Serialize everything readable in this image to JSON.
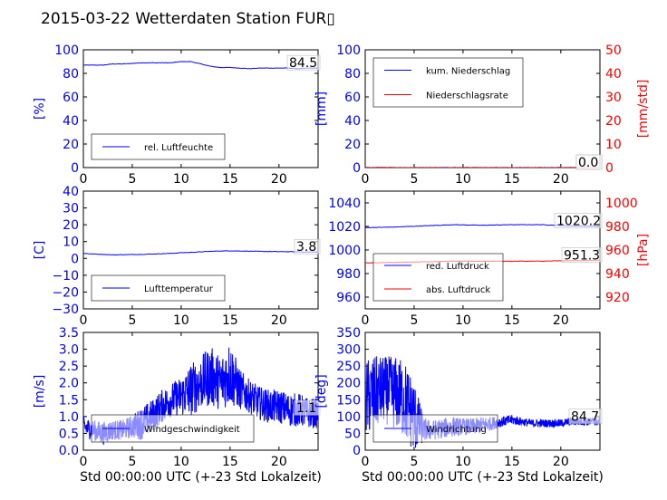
{
  "title": "2015-03-22 Wetterdaten Station FUR▯",
  "colors": {
    "blue": "#0000ff",
    "red": "#ff0000",
    "black": "#000000"
  },
  "chart_data": [
    {
      "id": "humidity",
      "type": "line",
      "xlim": [
        0,
        24
      ],
      "ylim": [
        0,
        100
      ],
      "xticks": [
        "0",
        "5",
        "10",
        "15",
        "20"
      ],
      "yticks": [
        "0",
        "20",
        "40",
        "60",
        "80",
        "100"
      ],
      "ylabel": "[%]",
      "legend": [
        "rel. Luftfeuchte"
      ],
      "annotation": "84.5",
      "series": [
        {
          "name": "rel. Luftfeuchte",
          "color": "#0000ff",
          "x": [
            0,
            1,
            2,
            3,
            4,
            5,
            6,
            7,
            8,
            9,
            10,
            11,
            12,
            13,
            14,
            15,
            16,
            17,
            18,
            19,
            20,
            21,
            22,
            23,
            24
          ],
          "y": [
            87,
            87,
            87,
            88,
            88,
            88.5,
            89,
            89,
            89,
            89,
            90,
            90,
            88,
            86,
            85,
            85,
            84.5,
            84,
            84.5,
            84.5,
            84.5,
            84.5,
            84,
            84.5,
            84.5
          ]
        }
      ]
    },
    {
      "id": "precip",
      "type": "line",
      "xlim": [
        0,
        24
      ],
      "ylim": [
        0,
        100
      ],
      "ylim2": [
        0,
        50
      ],
      "xticks": [
        "0",
        "5",
        "10",
        "15",
        "20"
      ],
      "yticks": [
        "0",
        "20",
        "40",
        "60",
        "80",
        "100"
      ],
      "yticks2": [
        "0",
        "10",
        "20",
        "30",
        "40",
        "50"
      ],
      "ylabel": "[mm]",
      "ylabel2": "[mm/std]",
      "legend": [
        "kum. Niederschlag",
        "Niederschlagsrate"
      ],
      "annotation": "0.0",
      "annotation2": "0.0",
      "series": [
        {
          "name": "kum. Niederschlag",
          "color": "#0000ff",
          "x": [
            0,
            24
          ],
          "y": [
            0,
            0
          ]
        },
        {
          "name": "Niederschlagsrate",
          "color": "#ff0000",
          "x": [
            0,
            2,
            3,
            24
          ],
          "y": [
            0,
            0.3,
            0,
            0
          ]
        }
      ]
    },
    {
      "id": "temperature",
      "type": "line",
      "xlim": [
        0,
        24
      ],
      "ylim": [
        -30,
        40
      ],
      "xticks": [
        "0",
        "5",
        "10",
        "15",
        "20"
      ],
      "yticks": [
        "−30",
        "−20",
        "−10",
        "0",
        "10",
        "20",
        "30",
        "40"
      ],
      "ylabel": "[C]",
      "legend": [
        "Lufttemperatur"
      ],
      "annotation": "3.8",
      "series": [
        {
          "name": "Lufttemperatur",
          "color": "#0000ff",
          "x": [
            0,
            1,
            2,
            3,
            4,
            5,
            6,
            7,
            8,
            9,
            10,
            11,
            12,
            13,
            14,
            15,
            16,
            17,
            18,
            19,
            20,
            21,
            22,
            23,
            24
          ],
          "y": [
            3,
            2.6,
            2.4,
            2.1,
            2.2,
            2.3,
            2.4,
            2.6,
            2.8,
            3.0,
            3.4,
            3.6,
            3.9,
            4.2,
            4.4,
            4.5,
            4.4,
            4.3,
            4.2,
            4.1,
            4.0,
            4.0,
            3.9,
            3.8,
            3.8
          ]
        }
      ]
    },
    {
      "id": "pressure",
      "type": "line",
      "xlim": [
        0,
        24
      ],
      "ylim": [
        950,
        1050
      ],
      "ylim2": [
        910,
        1010
      ],
      "xticks": [
        "0",
        "5",
        "10",
        "15",
        "20"
      ],
      "yticks": [
        "960",
        "980",
        "1000",
        "1020",
        "1040"
      ],
      "yticks2": [
        "920",
        "940",
        "960",
        "980",
        "1000"
      ],
      "ylabel2": "[hPa]",
      "legend": [
        "red. Luftdruck",
        "abs. Luftdruck"
      ],
      "annotation": "1020.2",
      "annotation2": "951.3",
      "series": [
        {
          "name": "red. Luftdruck",
          "color": "#0000ff",
          "axis": 1,
          "x": [
            0,
            3,
            6,
            9,
            12,
            15,
            18,
            21,
            24
          ],
          "y": [
            1019,
            1019.5,
            1020.5,
            1021.5,
            1021,
            1021.5,
            1021.5,
            1020.5,
            1020.2
          ]
        },
        {
          "name": "abs. Luftdruck",
          "color": "#ff0000",
          "axis": 2,
          "x": [
            0,
            3,
            6,
            9,
            12,
            15,
            18,
            21,
            24
          ],
          "y": [
            949,
            949.5,
            950,
            950.5,
            950.5,
            950.5,
            950.5,
            951,
            951.3
          ]
        }
      ]
    },
    {
      "id": "windspeed",
      "type": "line",
      "xlim": [
        0,
        24
      ],
      "ylim": [
        0,
        3.5
      ],
      "xticks": [
        "0",
        "5",
        "10",
        "15",
        "20"
      ],
      "yticks": [
        "0.0",
        "0.5",
        "1.0",
        "1.5",
        "2.0",
        "2.5",
        "3.0",
        "3.5"
      ],
      "ylabel": "[m/s]",
      "xlabel": "Std 00:00:00 UTC (+-23 Std Lokalzeit)",
      "legend": [
        "Windgeschwindigkeit"
      ],
      "annotation": "1.1",
      "series": [
        {
          "name": "Windgeschwindigkeit",
          "color": "#0000ff",
          "x": [
            0,
            1,
            2,
            3,
            4,
            5,
            6,
            7,
            8,
            9,
            10,
            11,
            12,
            13,
            14,
            15,
            16,
            17,
            18,
            19,
            20,
            21,
            22,
            23,
            24
          ],
          "y": [
            0.7,
            0.6,
            0.5,
            0.6,
            0.6,
            0.7,
            0.8,
            1.0,
            1.3,
            1.5,
            1.6,
            1.8,
            2.0,
            2.2,
            2.0,
            2.3,
            1.8,
            1.6,
            1.4,
            1.3,
            1.3,
            1.2,
            1.2,
            1.1,
            1.1
          ],
          "amp": [
            0.3,
            0.3,
            0.35,
            0.3,
            0.3,
            0.35,
            0.5,
            0.5,
            0.5,
            0.5,
            0.6,
            0.8,
            0.8,
            0.9,
            0.8,
            1.0,
            0.6,
            0.5,
            0.5,
            0.5,
            0.5,
            0.5,
            0.5,
            0.45,
            0.45
          ]
        }
      ]
    },
    {
      "id": "winddir",
      "type": "line",
      "xlim": [
        0,
        24
      ],
      "ylim": [
        0,
        350
      ],
      "xticks": [
        "0",
        "5",
        "10",
        "15",
        "20"
      ],
      "yticks": [
        "0",
        "50",
        "100",
        "150",
        "200",
        "250",
        "300",
        "350"
      ],
      "ylabel": "[deg]",
      "xlabel": "Std 00:00:00 UTC (+-23 Std Lokalzeit)",
      "legend": [
        "Windrichtung"
      ],
      "annotation": "84.7",
      "series": [
        {
          "name": "Windrichtung",
          "color": "#0000ff",
          "x": [
            0,
            1,
            2,
            3,
            4,
            5,
            6,
            7,
            8,
            9,
            10,
            11,
            12,
            13,
            14,
            15,
            16,
            17,
            18,
            19,
            20,
            21,
            22,
            23,
            24
          ],
          "y": [
            150,
            170,
            180,
            170,
            150,
            100,
            60,
            60,
            65,
            70,
            70,
            70,
            75,
            80,
            85,
            90,
            85,
            80,
            80,
            80,
            80,
            85,
            85,
            85,
            85
          ],
          "amp": [
            120,
            110,
            100,
            110,
            120,
            110,
            35,
            30,
            30,
            30,
            25,
            25,
            25,
            20,
            15,
            15,
            12,
            12,
            12,
            12,
            12,
            12,
            12,
            12,
            12
          ]
        }
      ]
    }
  ]
}
